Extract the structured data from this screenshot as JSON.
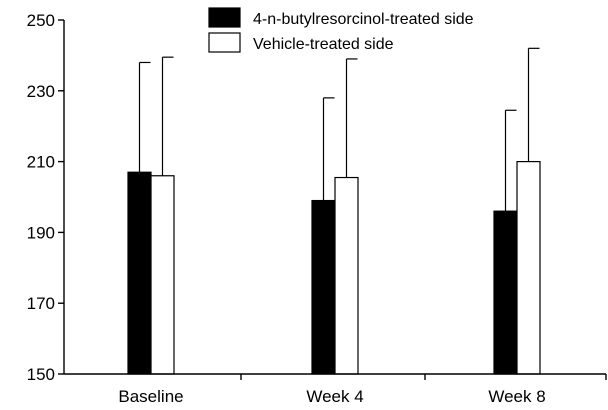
{
  "chart_data": {
    "type": "bar",
    "title": "",
    "xlabel": "",
    "ylabel": "",
    "ylim": [
      150,
      250
    ],
    "yticks": [
      150,
      170,
      190,
      210,
      230,
      250
    ],
    "categories": [
      "Baseline",
      "Week 4",
      "Week 8"
    ],
    "series": [
      {
        "name": "4-n-butylresorcinol-treated side",
        "color": "#000000",
        "values": [
          207,
          199,
          196
        ],
        "error_upper": [
          238,
          228,
          224.5
        ]
      },
      {
        "name": "Vehicle-treated side",
        "color": "#ffffff",
        "values": [
          206,
          205.5,
          210
        ],
        "error_upper": [
          239.5,
          239,
          242
        ]
      }
    ],
    "legend": "top-center",
    "grid": false,
    "error_bars": "upper-only"
  }
}
